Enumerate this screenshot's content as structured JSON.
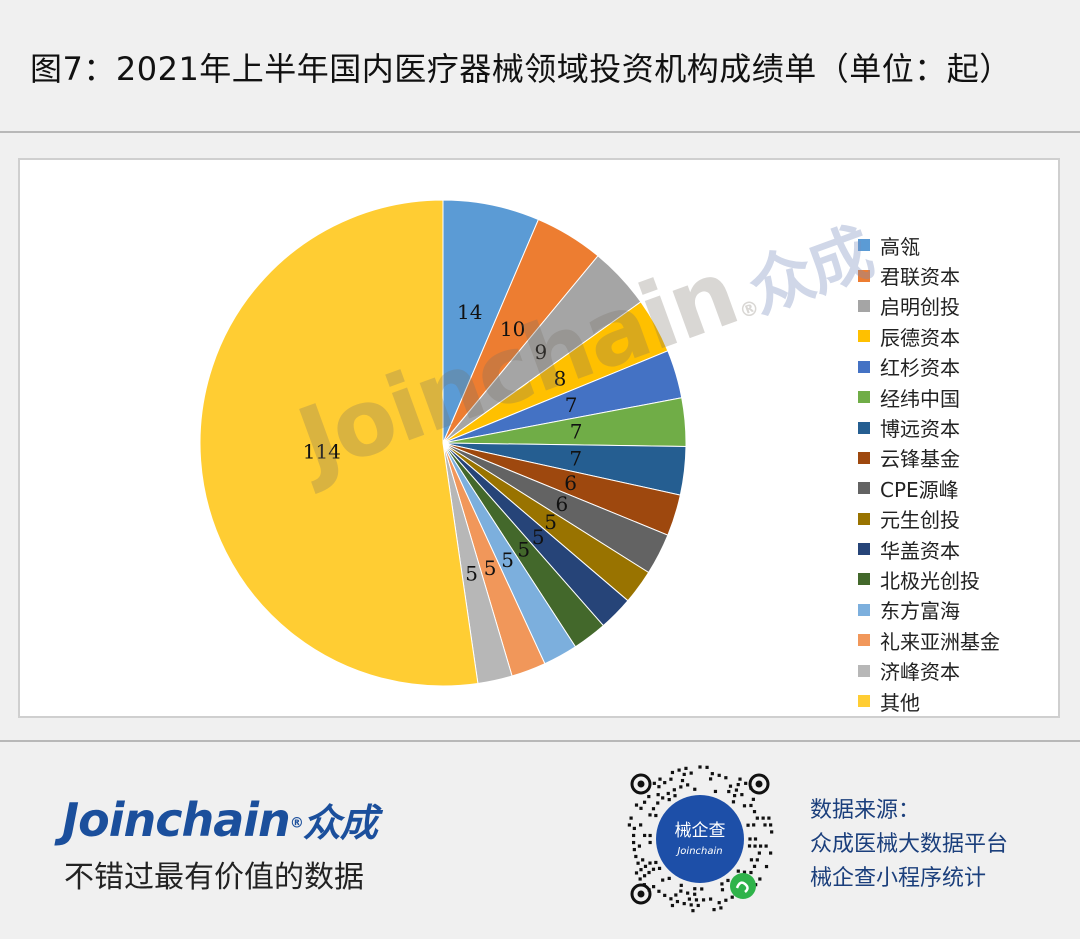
{
  "title": "图7：2021年上半年国内医疗器械领域投资机构成绩单（单位：起）",
  "chart_data": {
    "type": "pie",
    "categories": [
      "高瓴",
      "君联资本",
      "启明创投",
      "辰德资本",
      "红杉资本",
      "经纬中国",
      "博远资本",
      "云锋基金",
      "CPE源峰",
      "元生创投",
      "华盖资本",
      "北极光创投",
      "东方富海",
      "礼来亚洲基金",
      "济峰资本",
      "其他"
    ],
    "values": [
      14,
      10,
      9,
      8,
      7,
      7,
      7,
      6,
      6,
      5,
      5,
      5,
      5,
      5,
      5,
      114
    ],
    "colors": [
      "#5b9bd5",
      "#ed7d31",
      "#a5a5a5",
      "#ffc000",
      "#4472c4",
      "#70ad47",
      "#255e91",
      "#9e480e",
      "#636363",
      "#997300",
      "#264478",
      "#43682b",
      "#7cafdd",
      "#f1975a",
      "#b7b7b7",
      "#ffcd33"
    ],
    "legend_position": "right",
    "data_labels": true
  },
  "watermark": {
    "latin": "Joinchain",
    "reg": "®",
    "cn": "众成"
  },
  "footer": {
    "brand": "Joinchain",
    "brand_reg": "®",
    "brand_cn": "众成",
    "slogan": "不错过最有价值的数据",
    "qr_label": "械企查",
    "qr_sub": "Joinchain",
    "source_lines": [
      "数据来源：",
      "众成医械大数据平台",
      "械企查小程序统计"
    ]
  }
}
